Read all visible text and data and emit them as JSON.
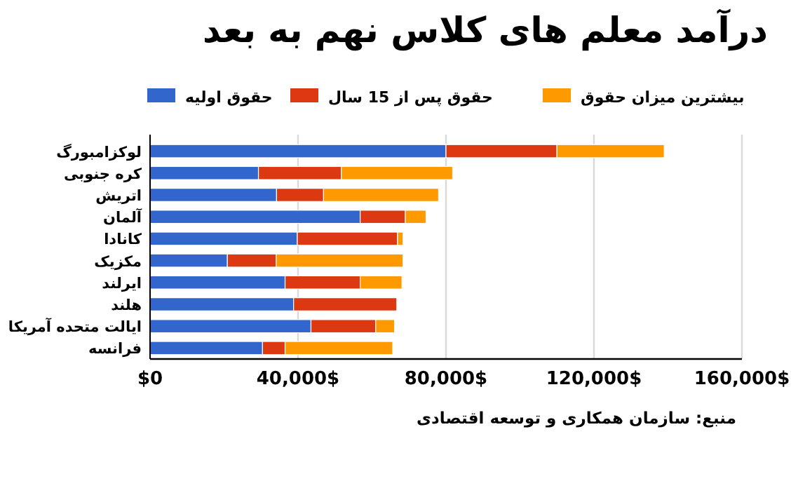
{
  "chart_data": {
    "type": "bar",
    "orientation": "horizontal",
    "stacked": true,
    "title": "درآمد معلم های کلاس نهم به بعد",
    "categories": [
      "لوکزامبورگ",
      "کره جنوبی",
      "اتریش",
      "آلمان",
      "کانادا",
      "مکزیک",
      "ایرلند",
      "هلند",
      "ایالت متحده آمریکا",
      "فرانسه"
    ],
    "series": [
      {
        "name": "حقوق اولیه",
        "color": "#3366cc",
        "values": [
          80000,
          29300,
          34200,
          56800,
          39800,
          20900,
          36500,
          38800,
          43500,
          30400
        ]
      },
      {
        "name": "حقوق پس از 15 سال",
        "color": "#dc3912",
        "values": [
          30000,
          22400,
          12700,
          12200,
          27100,
          13200,
          20300,
          27900,
          17500,
          6100
        ]
      },
      {
        "name": "بیشترین میزان حقوق",
        "color": "#ff9900",
        "values": [
          29000,
          30100,
          31100,
          5600,
          1500,
          34300,
          11300,
          0,
          5100,
          29100
        ]
      }
    ],
    "xlim": [
      0,
      160000
    ],
    "xticks": [
      {
        "value": 0,
        "label": "$0"
      },
      {
        "value": 40000,
        "label": "40,000$"
      },
      {
        "value": 80000,
        "label": "80,000$"
      },
      {
        "value": 120000,
        "label": "120,000$"
      },
      {
        "value": 160000,
        "label": "160,000$"
      }
    ],
    "grid": "x",
    "legend": "top",
    "annotations": [
      "منبع: سازمان همکاری و توسعه اقتصادی"
    ]
  }
}
